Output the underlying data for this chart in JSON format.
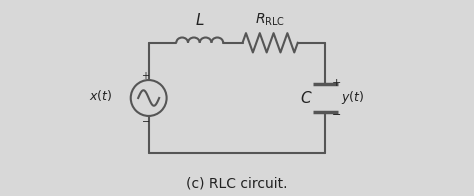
{
  "bg_color": "#d8d8d8",
  "line_color": "#555555",
  "text_color": "#222222",
  "title": "(c) RLC circuit.",
  "title_fontsize": 10,
  "fig_width": 4.74,
  "fig_height": 1.96,
  "dpi": 100
}
